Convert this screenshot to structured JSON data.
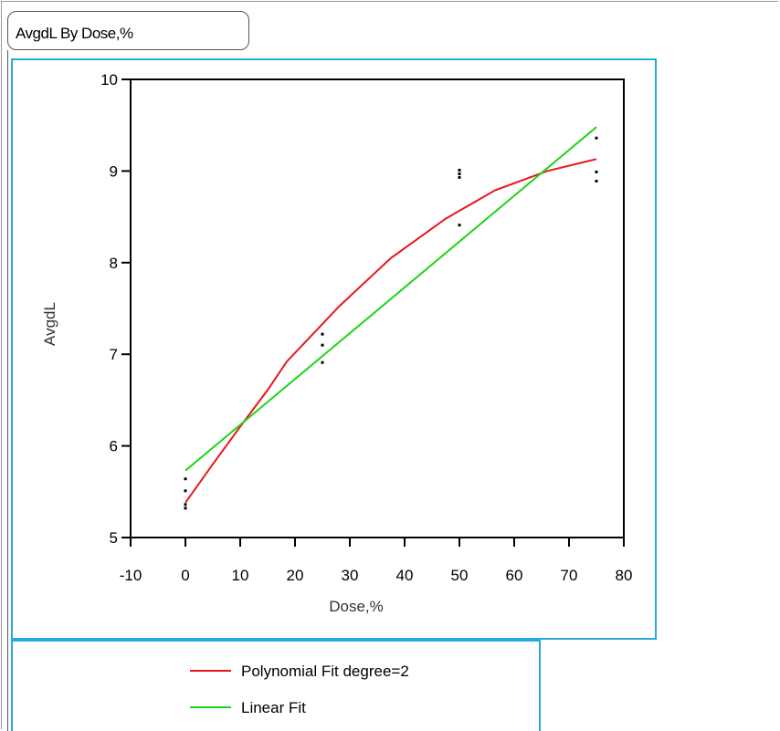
{
  "window": {
    "title": "AvgdL By Dose,%"
  },
  "legend": {
    "items": [
      {
        "label": "Polynomial Fit degree=2",
        "color": "#e8161b"
      },
      {
        "label": "Linear Fit",
        "color": "#1ed418"
      }
    ]
  },
  "chart_data": {
    "type": "scatter",
    "xlabel": "Dose,%",
    "ylabel": "AvgdL",
    "xlim": [
      -10,
      80
    ],
    "ylim": [
      5,
      10
    ],
    "xticks": [
      -10,
      0,
      10,
      20,
      30,
      40,
      50,
      60,
      70,
      80
    ],
    "yticks": [
      5,
      6,
      7,
      8,
      9,
      10
    ],
    "grid": false,
    "points": [
      {
        "x": 0,
        "y": 5.32
      },
      {
        "x": 0,
        "y": 5.36
      },
      {
        "x": 0,
        "y": 5.51
      },
      {
        "x": 0,
        "y": 5.64
      },
      {
        "x": 25,
        "y": 6.91
      },
      {
        "x": 25,
        "y": 7.1
      },
      {
        "x": 25,
        "y": 7.22
      },
      {
        "x": 50,
        "y": 8.41
      },
      {
        "x": 50,
        "y": 8.93
      },
      {
        "x": 50,
        "y": 8.97
      },
      {
        "x": 50,
        "y": 9.01
      },
      {
        "x": 75,
        "y": 8.89
      },
      {
        "x": 75,
        "y": 8.99
      },
      {
        "x": 75,
        "y": 9.36
      }
    ],
    "series": [
      {
        "name": "Polynomial Fit degree=2",
        "color": "#e8161b",
        "x": [
          0,
          5,
          10,
          15,
          18.5,
          25,
          28,
          37.5,
          47.5,
          56.5,
          66,
          75
        ],
        "y": [
          5.38,
          5.8,
          6.21,
          6.61,
          6.92,
          7.33,
          7.52,
          8.05,
          8.48,
          8.79,
          9.0,
          9.13
        ]
      },
      {
        "name": "Linear Fit",
        "color": "#1ed418",
        "x": [
          0,
          75
        ],
        "y": [
          5.73,
          9.48
        ]
      }
    ]
  }
}
